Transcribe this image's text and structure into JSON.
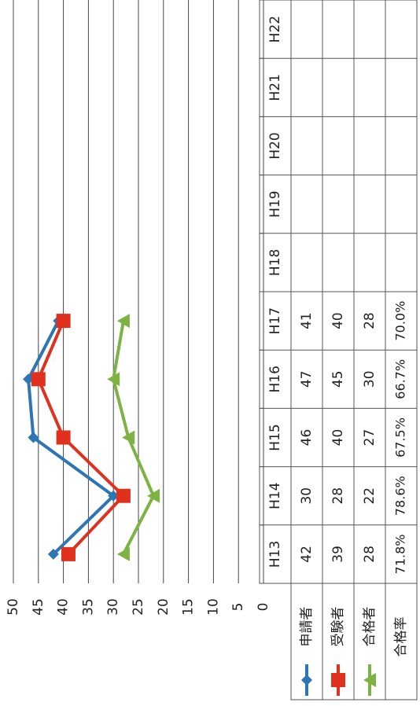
{
  "chart_data": {
    "type": "line",
    "categories": [
      "H13",
      "H14",
      "H15",
      "H16",
      "H17",
      "H18",
      "H19",
      "H20",
      "H21",
      "H22"
    ],
    "series": [
      {
        "name": "申請者",
        "color": "#2e75b6",
        "marker": "diamond",
        "values": [
          42,
          30,
          46,
          47,
          41,
          null,
          null,
          null,
          null,
          null
        ]
      },
      {
        "name": "受験者",
        "color": "#e0301e",
        "marker": "square",
        "values": [
          39,
          28,
          40,
          45,
          40,
          null,
          null,
          null,
          null,
          null
        ]
      },
      {
        "name": "合格者",
        "color": "#7cb342",
        "marker": "triangle",
        "values": [
          28,
          22,
          27,
          30,
          28,
          null,
          null,
          null,
          null,
          null
        ]
      }
    ],
    "rate": {
      "name": "合格率",
      "labels": [
        "71.8%",
        "78.6%",
        "67.5%",
        "66.7%",
        "70.0%",
        null,
        null,
        null,
        null,
        null
      ]
    },
    "ylim": [
      0,
      50
    ],
    "yticks": [
      0,
      5,
      10,
      15,
      20,
      25,
      30,
      35,
      40,
      45,
      50
    ],
    "grid": true
  }
}
